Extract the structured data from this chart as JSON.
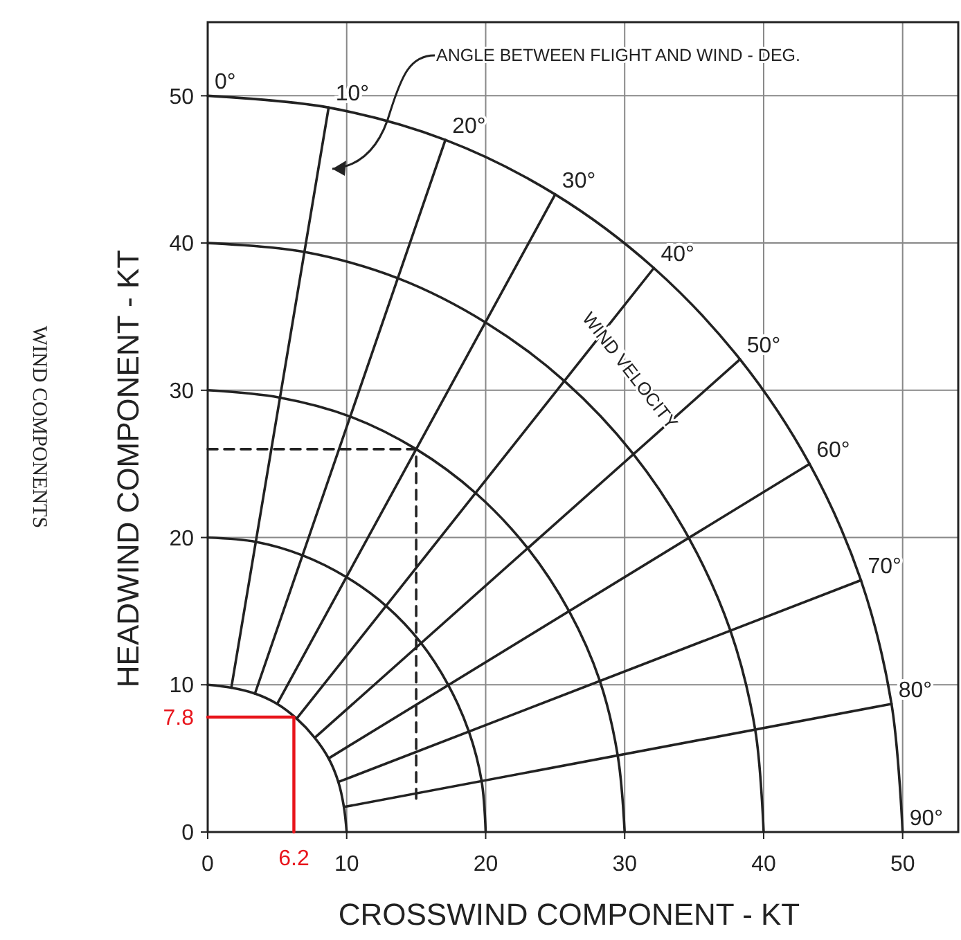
{
  "chart_data": {
    "type": "line",
    "title": "WIND COMPONENTS",
    "xlabel": "CROSSWIND COMPONENT - KT",
    "ylabel": "HEADWIND COMPONENT - KT",
    "xlim": [
      0,
      54
    ],
    "ylim": [
      0,
      55
    ],
    "xticks": [
      0,
      10,
      20,
      30,
      40,
      50
    ],
    "yticks": [
      0,
      10,
      20,
      30,
      40,
      50
    ],
    "grid": true,
    "series": [
      {
        "color": "#222222",
        "x": [
          0,
          1.7,
          3.4,
          5,
          6.4,
          7.7,
          8.7,
          9.4,
          9.8,
          10
        ],
        "values": [
          10,
          9.8,
          9.4,
          8.7,
          7.7,
          6.4,
          5,
          3.4,
          1.7,
          0
        ]
      },
      {
        "color": "#222222",
        "x": [
          0,
          3.5,
          6.8,
          10,
          12.9,
          15.3,
          17.3,
          18.8,
          19.7,
          20
        ],
        "values": [
          20,
          19.7,
          18.8,
          17.3,
          15.3,
          12.9,
          10,
          6.8,
          3.5,
          0
        ]
      },
      {
        "color": "#222222",
        "x": [
          0,
          5.2,
          10.3,
          15,
          19.3,
          23,
          26,
          28.2,
          29.5,
          30
        ],
        "values": [
          30,
          29.5,
          28.2,
          26,
          23,
          19.3,
          15,
          10.3,
          5.2,
          0
        ]
      },
      {
        "color": "#222222",
        "x": [
          0,
          6.9,
          13.7,
          20,
          25.7,
          30.6,
          34.6,
          37.6,
          39.4,
          40
        ],
        "values": [
          40,
          39.4,
          37.6,
          34.6,
          30.6,
          25.7,
          20,
          13.7,
          6.9,
          0
        ]
      },
      {
        "color": "#222222",
        "x": [
          0,
          8.7,
          17.1,
          25,
          32.1,
          38.3,
          43.3,
          47,
          49.2,
          50
        ],
        "values": [
          50,
          49.2,
          47,
          43.3,
          38.3,
          32.1,
          25,
          17.1,
          8.7,
          0
        ]
      },
      {
        "color": "#222222",
        "x": [
          1.7,
          8.7
        ],
        "values": [
          9.8,
          49.2
        ]
      },
      {
        "color": "#222222",
        "x": [
          3.4,
          17.1
        ],
        "values": [
          9.4,
          47
        ]
      },
      {
        "color": "#222222",
        "x": [
          5,
          25
        ],
        "values": [
          8.7,
          43.3
        ]
      },
      {
        "color": "#222222",
        "x": [
          6.4,
          32.1
        ],
        "values": [
          7.7,
          38.3
        ]
      },
      {
        "color": "#222222",
        "x": [
          7.7,
          38.3
        ],
        "values": [
          6.4,
          32.1
        ]
      },
      {
        "color": "#222222",
        "x": [
          8.7,
          43.3
        ],
        "values": [
          5,
          25
        ]
      },
      {
        "color": "#222222",
        "x": [
          9.4,
          47
        ],
        "values": [
          3.4,
          17.1
        ]
      },
      {
        "color": "#222222",
        "x": [
          9.8,
          49.2
        ],
        "values": [
          1.7,
          8.7
        ]
      },
      {
        "color": "#222222",
        "line_style": "dashed",
        "x": [
          0,
          15,
          15
        ],
        "values": [
          26,
          26,
          2
        ]
      },
      {
        "color": "#e8141b",
        "x": [
          0,
          6.2,
          6.2
        ],
        "values": [
          7.8,
          7.8,
          0
        ]
      }
    ],
    "annotations": [
      "ANGLE BETWEEN FLIGHT AND WIND - DEG.",
      "WIND VELOCITY",
      {
        "text": "0°",
        "x": 0,
        "y": 50
      },
      {
        "text": "10°",
        "x": 8.7,
        "y": 49.2
      },
      {
        "text": "20°",
        "x": 17.1,
        "y": 47
      },
      {
        "text": "30°",
        "x": 25,
        "y": 43.3
      },
      {
        "text": "40°",
        "x": 32.1,
        "y": 38.3
      },
      {
        "text": "50°",
        "x": 38.3,
        "y": 32.1
      },
      {
        "text": "60°",
        "x": 43.3,
        "y": 25
      },
      {
        "text": "70°",
        "x": 47,
        "y": 17.1
      },
      {
        "text": "80°",
        "x": 49.2,
        "y": 8.7
      },
      {
        "text": "90°",
        "x": 50,
        "y": 0
      },
      {
        "text": "7.8",
        "x": 0,
        "y": 7.8
      },
      {
        "text": "6.2",
        "x": 6.2,
        "y": 0
      }
    ]
  }
}
